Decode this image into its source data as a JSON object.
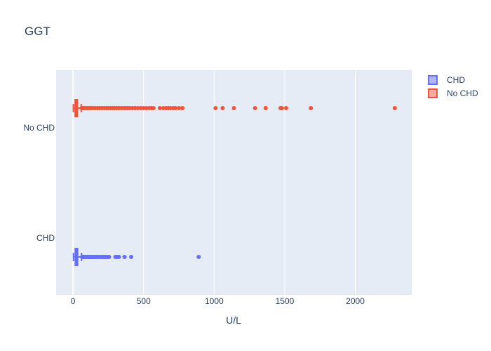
{
  "chart_data": {
    "type": "box",
    "orientation": "horizontal",
    "title": "GGT",
    "xlabel": "U/L",
    "ylabel": "",
    "xlim": [
      -120,
      2400
    ],
    "x_ticks": [
      0,
      500,
      1000,
      1500,
      2000
    ],
    "categories": [
      "No CHD",
      "CHD"
    ],
    "grid": true,
    "legend_position": "top-right",
    "series": [
      {
        "name": "CHD",
        "color": "#636efa",
        "category": "CHD",
        "box": {
          "min": 3,
          "q1": 16,
          "median": 24,
          "q3": 32,
          "max": 60
        },
        "outliers": [
          65,
          70,
          76,
          82,
          88,
          95,
          102,
          110,
          118,
          125,
          132,
          140,
          148,
          156,
          165,
          175,
          185,
          198,
          205,
          215,
          225,
          235,
          245,
          255,
          300,
          310,
          325,
          365,
          412,
          890
        ]
      },
      {
        "name": "No CHD",
        "color": "#ef553b",
        "category": "No CHD",
        "box": {
          "min": 2,
          "q1": 15,
          "median": 22,
          "q3": 30,
          "max": 58
        },
        "outliers": [
          62,
          70,
          80,
          92,
          105,
          118,
          130,
          145,
          160,
          175,
          190,
          205,
          220,
          235,
          250,
          265,
          280,
          295,
          310,
          325,
          340,
          355,
          370,
          385,
          400,
          420,
          440,
          460,
          480,
          500,
          520,
          540,
          555,
          570,
          615,
          640,
          660,
          675,
          690,
          710,
          725,
          750,
          775,
          1010,
          1060,
          1140,
          1290,
          1365,
          1470,
          1480,
          1510,
          1685,
          2280
        ]
      }
    ]
  }
}
